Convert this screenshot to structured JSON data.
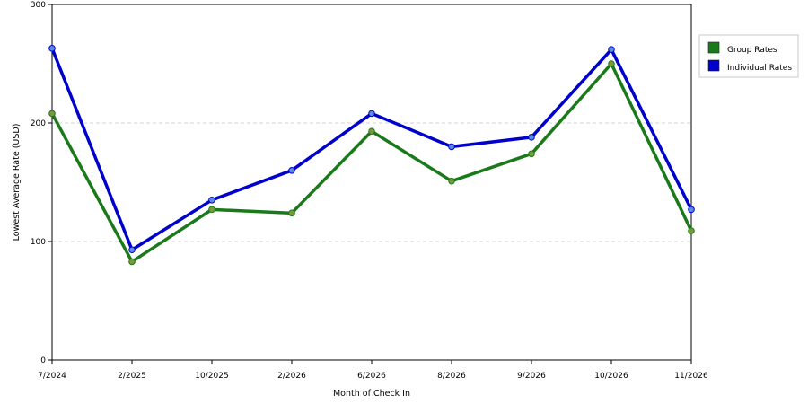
{
  "chart_data": {
    "type": "line",
    "title": "",
    "xlabel": "Month of Check In",
    "ylabel": "Lowest Average Rate (USD)",
    "ylim": [
      0,
      300
    ],
    "yticks": [
      "0",
      "100",
      "200",
      "300"
    ],
    "categories": [
      "7/2024",
      "2/2025",
      "10/2025",
      "2/2026",
      "6/2026",
      "8/2026",
      "9/2026",
      "10/2026",
      "11/2026"
    ],
    "grid": "horizontal dashed",
    "legend_position": "right",
    "series": [
      {
        "name": "Group Rates",
        "color": "#1a7a1a",
        "marker_color": "#7a9a3a",
        "values": [
          208,
          83,
          127,
          124,
          193,
          151,
          174,
          250,
          109
        ]
      },
      {
        "name": "Individual Rates",
        "color": "#0000cc",
        "marker_color": "#5b8be0",
        "values": [
          263,
          93,
          135,
          160,
          208,
          180,
          188,
          262,
          127
        ]
      }
    ]
  }
}
